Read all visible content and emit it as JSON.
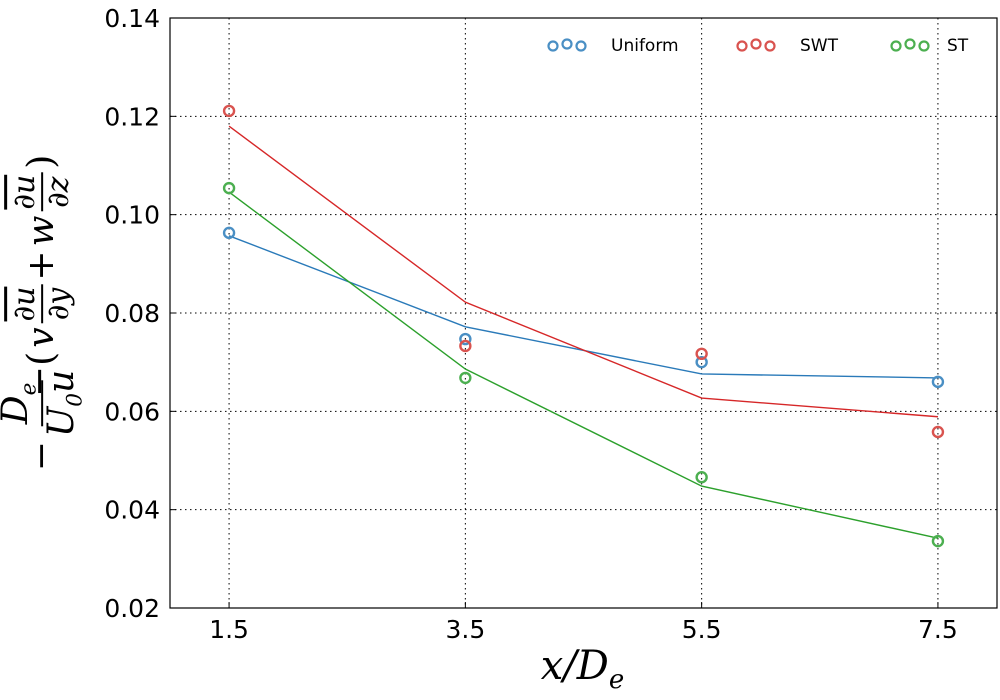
{
  "chart_data": {
    "type": "line",
    "title": "",
    "xlabel": {
      "base": "x/D",
      "sub": "e"
    },
    "ylabel": {
      "minus": "−",
      "frac1_num": "D",
      "frac1_num_sub": "e",
      "frac1_den": "U",
      "frac1_den_sub": "0",
      "frac1_den_bar": "u",
      "open": "(",
      "v": "v",
      "frac2_num": "∂u",
      "frac2_den": "∂y",
      "plus": "+",
      "w": "w",
      "frac3_num": "∂u",
      "frac3_den": "∂z",
      "close": ")"
    },
    "x": [
      1.5,
      3.5,
      5.5,
      7.5
    ],
    "xticks": [
      "1.5",
      "3.5",
      "5.5",
      "7.5"
    ],
    "xlim": [
      1.0,
      8.0
    ],
    "ylim": [
      0.02,
      0.14
    ],
    "yticks": [
      "0.02",
      "0.04",
      "0.06",
      "0.08",
      "0.10",
      "0.12",
      "0.14"
    ],
    "grid": true,
    "legend_position": "top-right",
    "series": [
      {
        "name": "Uniform",
        "color": "#2a7ab9",
        "marker_color": "#4a8fc4",
        "markers": [
          0.0963,
          0.0747,
          0.07,
          0.066
        ],
        "line": [
          0.0957,
          0.0772,
          0.0676,
          0.0668
        ]
      },
      {
        "name": "SWT",
        "color": "#d62728",
        "marker_color": "#d9534f",
        "markers": [
          0.1211,
          0.0733,
          0.0717,
          0.0558
        ],
        "line": [
          0.118,
          0.0822,
          0.0627,
          0.0589
        ]
      },
      {
        "name": "ST",
        "color": "#2ca02c",
        "marker_color": "#4caf50",
        "markers": [
          0.1054,
          0.0668,
          0.0466,
          0.0336
        ],
        "line": [
          0.1046,
          0.0686,
          0.0448,
          0.0342
        ]
      }
    ]
  }
}
